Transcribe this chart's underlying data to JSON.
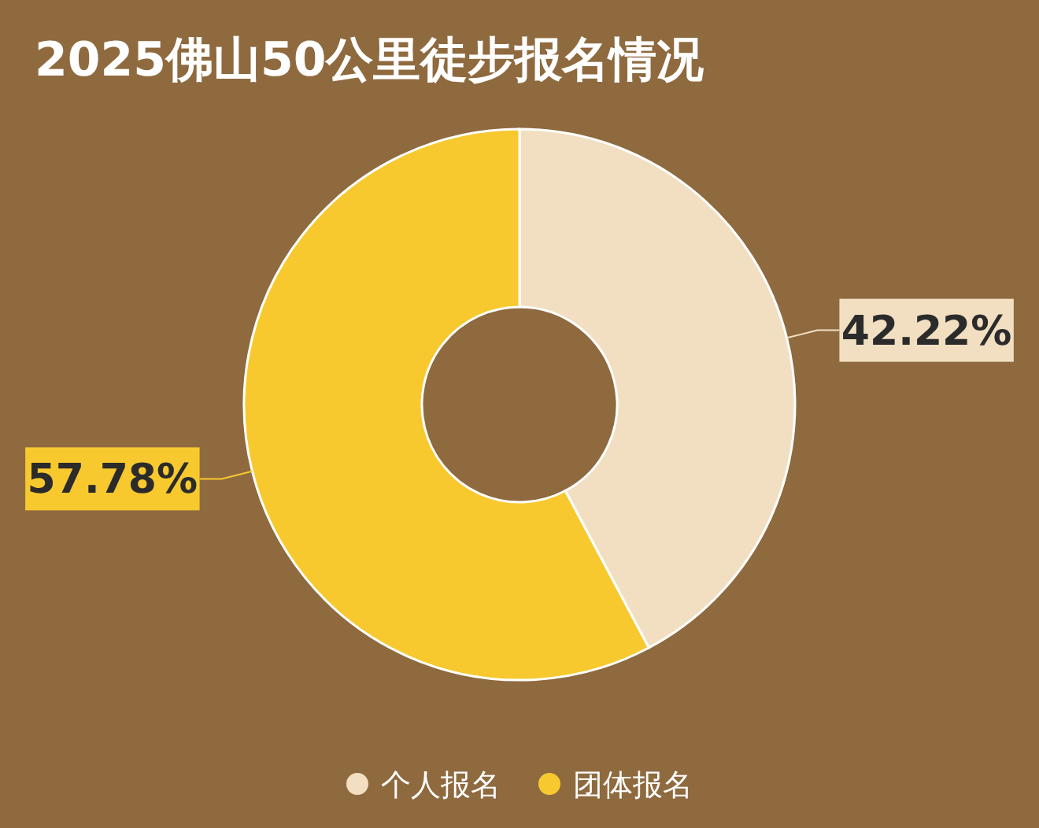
{
  "chart_data": {
    "type": "donut",
    "title": "2025佛山50公里徒步报名情况",
    "categories": [
      "个人报名",
      "团体报名"
    ],
    "values": [
      42.22,
      57.78
    ],
    "colors": [
      "#f2dfc2",
      "#f7c92f"
    ],
    "value_labels": [
      "42.22%",
      "57.78%"
    ],
    "legend": "bottom"
  }
}
